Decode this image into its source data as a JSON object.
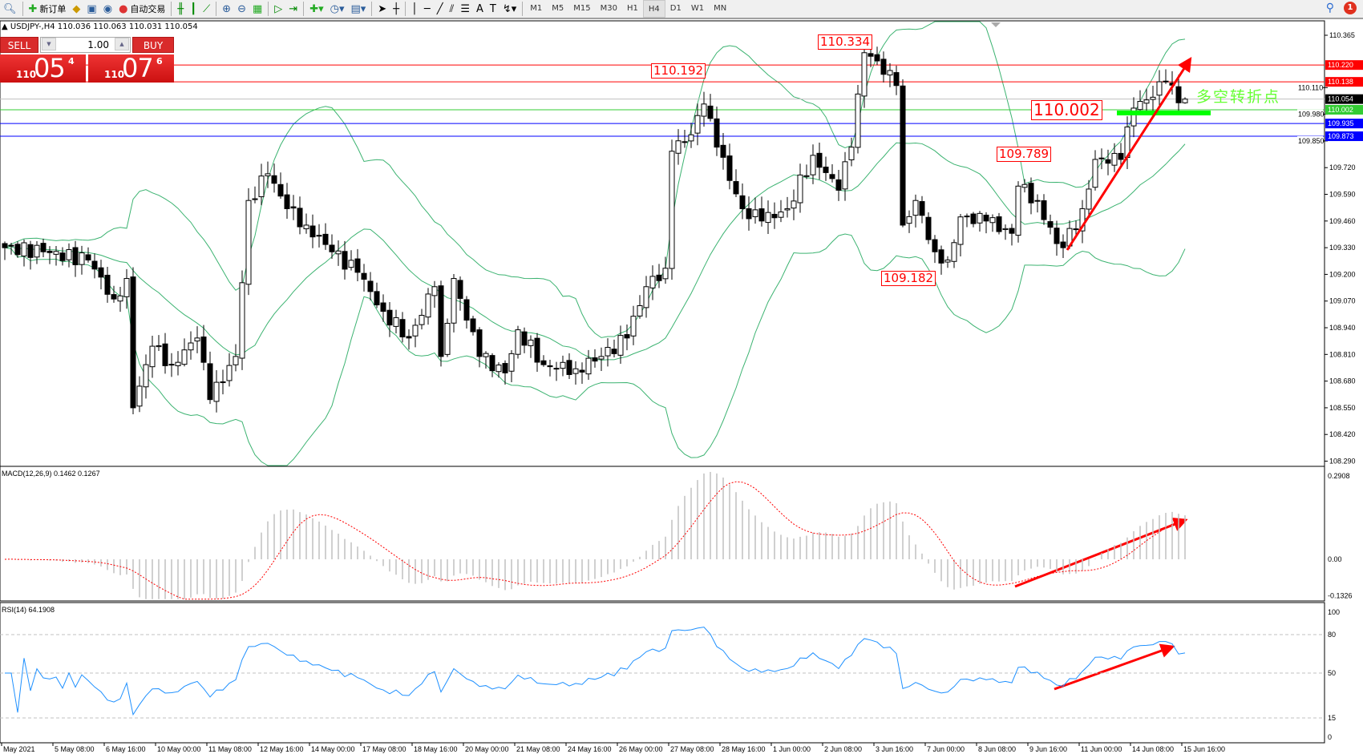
{
  "toolbar": {
    "new_order": "新订单",
    "auto_trading": "自动交易",
    "timeframes": [
      "M1",
      "M5",
      "M15",
      "M30",
      "H1",
      "H4",
      "D1",
      "W1",
      "MN"
    ],
    "active_timeframe": "H4",
    "notification_count": "1"
  },
  "chart": {
    "title": "▲ USDJPY-,H4  110.036 110.063 110.031 110.054",
    "symbol": "USDJPY-",
    "timeframe": "H4",
    "ohlc_last": {
      "open": 110.036,
      "high": 110.063,
      "low": 110.031,
      "close": 110.054
    }
  },
  "trade_panel": {
    "sell": "SELL",
    "buy": "BUY",
    "lot": "1.00",
    "sell_price": {
      "small": "110",
      "big": "05",
      "sup": "4"
    },
    "buy_price": {
      "small": "110",
      "big": "07",
      "sup": "6"
    }
  },
  "price_axis": {
    "ticks": [
      "110.365",
      "110.110",
      "109.980",
      "109.850",
      "109.720",
      "109.590",
      "109.460",
      "109.330",
      "109.200",
      "109.070",
      "108.940",
      "108.810",
      "108.680",
      "108.550",
      "108.420",
      "108.290"
    ],
    "tick_values": [
      110.365,
      110.11,
      109.98,
      109.85,
      109.72,
      109.59,
      109.46,
      109.33,
      109.2,
      109.07,
      108.94,
      108.81,
      108.68,
      108.55,
      108.42,
      108.29
    ]
  },
  "levels": [
    {
      "price": 110.22,
      "label": "110.220",
      "color": "#ff0000"
    },
    {
      "price": 110.138,
      "label": "110.138",
      "color": "#ff0000"
    },
    {
      "price": 110.054,
      "label": "110.054",
      "color": "#000000",
      "line": "#c0c0c0"
    },
    {
      "price": 110.002,
      "label": "110.002",
      "color": "#33cc33"
    },
    {
      "price": 109.935,
      "label": "109.935",
      "color": "#0000ff"
    },
    {
      "price": 109.873,
      "label": "109.873",
      "color": "#0000ff"
    }
  ],
  "annotations": {
    "a1": "110.334",
    "a2": "110.192",
    "a3": "110.002",
    "a4": "109.789",
    "a5": "109.182",
    "turning_point": "多空转折点"
  },
  "price_path": [
    [
      0,
      109.33
    ],
    [
      6,
      109.31
    ],
    [
      13,
      109.27
    ],
    [
      17,
      109.08
    ],
    [
      19,
      109.18
    ],
    [
      20,
      108.55
    ],
    [
      23,
      108.85
    ],
    [
      26,
      108.76
    ],
    [
      30,
      108.89
    ],
    [
      32,
      108.59
    ],
    [
      36,
      108.8
    ],
    [
      38,
      109.56
    ],
    [
      41,
      109.69
    ],
    [
      44,
      109.52
    ],
    [
      47,
      109.44
    ],
    [
      51,
      109.31
    ],
    [
      55,
      109.21
    ],
    [
      59,
      109.02
    ],
    [
      63,
      108.89
    ],
    [
      67,
      109.14
    ],
    [
      68,
      108.8
    ],
    [
      70,
      109.18
    ],
    [
      74,
      108.8
    ],
    [
      78,
      108.72
    ],
    [
      80,
      108.93
    ],
    [
      84,
      108.76
    ],
    [
      89,
      108.74
    ],
    [
      93,
      108.8
    ],
    [
      97,
      108.89
    ],
    [
      100,
      109.14
    ],
    [
      103,
      109.23
    ],
    [
      104,
      109.8
    ],
    [
      107,
      109.88
    ],
    [
      109,
      110.03
    ],
    [
      111,
      109.82
    ],
    [
      115,
      109.52
    ],
    [
      118,
      109.46
    ],
    [
      122,
      109.52
    ],
    [
      126,
      109.78
    ],
    [
      130,
      109.61
    ],
    [
      132,
      109.82
    ],
    [
      134,
      110.28
    ],
    [
      136,
      110.24
    ],
    [
      139,
      110.12
    ],
    [
      140,
      109.44
    ],
    [
      142,
      109.56
    ],
    [
      145,
      109.31
    ],
    [
      147,
      109.27
    ],
    [
      149,
      109.48
    ],
    [
      153,
      109.46
    ],
    [
      157,
      109.4
    ],
    [
      158,
      109.63
    ],
    [
      161,
      109.56
    ],
    [
      164,
      109.35
    ],
    [
      165,
      109.33
    ],
    [
      168,
      109.52
    ],
    [
      170,
      109.76
    ],
    [
      174,
      109.76
    ],
    [
      176,
      110.01
    ],
    [
      178,
      110.05
    ],
    [
      181,
      110.14
    ],
    [
      183,
      110.036
    ],
    [
      184,
      110.054
    ]
  ],
  "indicators": {
    "macd": {
      "label": "MACD(12,26,9) 0.1462 0.1267",
      "axis": [
        "0.2908",
        "0.00",
        "-0.1326"
      ],
      "max": 0.2908,
      "min": -0.1326
    },
    "rsi": {
      "label": "RSI(14) 64.1908",
      "axis": [
        "100",
        "80",
        "50",
        "15",
        "0"
      ],
      "levels": [
        80,
        50,
        15
      ]
    }
  },
  "time_axis": [
    "May 2021",
    "5 May 08:00",
    "6 May 16:00",
    "10 May 00:00",
    "11 May 08:00",
    "12 May 16:00",
    "14 May 00:00",
    "17 May 08:00",
    "18 May 16:00",
    "20 May 00:00",
    "21 May 08:00",
    "24 May 16:00",
    "26 May 00:00",
    "27 May 08:00",
    "28 May 16:00",
    "1 Jun 00:00",
    "2 Jun 08:00",
    "3 Jun 16:00",
    "7 Jun 00:00",
    "8 Jun 08:00",
    "9 Jun 16:00",
    "11 Jun 00:00",
    "14 Jun 08:00",
    "15 Jun 16:00"
  ],
  "colors": {
    "bull": "#ffffff",
    "bear": "#000000",
    "bands": "#3cb371",
    "signal": "#ff0000",
    "histogram": "#c0c0c0",
    "rsi": "#1e90ff",
    "arrow": "#ff0000",
    "turning_bar": "#00ff00"
  }
}
